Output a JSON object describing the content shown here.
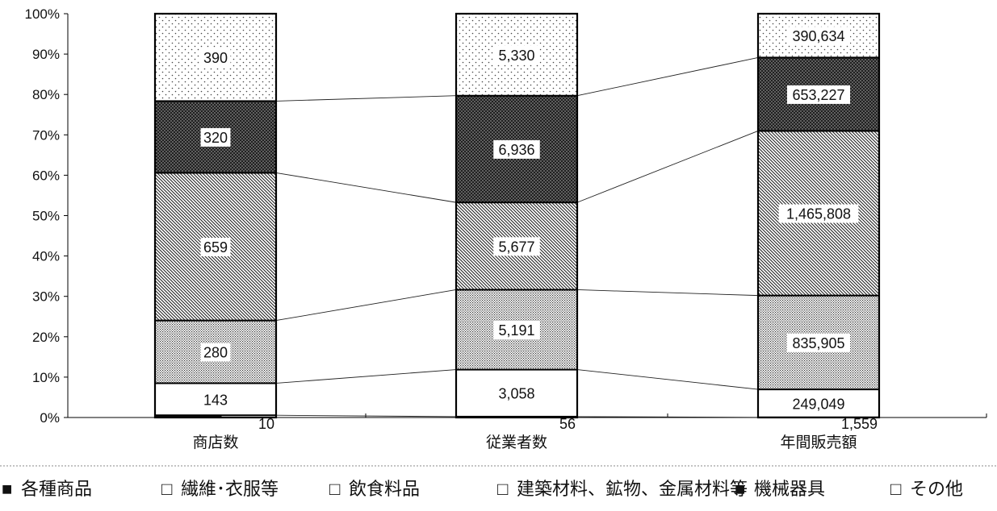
{
  "chart_data": {
    "type": "bar",
    "stacked": true,
    "normalized": true,
    "categories": [
      "商店数",
      "従業者数",
      "年間販売額"
    ],
    "series": [
      {
        "name": "各種商品",
        "values": [
          10,
          56,
          1559
        ],
        "pattern": "solid-black"
      },
      {
        "name": "繊維･衣服等",
        "values": [
          143,
          3058,
          249049
        ],
        "pattern": "white"
      },
      {
        "name": "飲食料品",
        "values": [
          280,
          5191,
          835905
        ],
        "pattern": "fine-dots"
      },
      {
        "name": "建築材料、鉱物、金属材料等",
        "values": [
          659,
          5677,
          1465808
        ],
        "pattern": "diagonal"
      },
      {
        "name": "機械器具",
        "values": [
          320,
          6936,
          653227
        ],
        "pattern": "crosshatch"
      },
      {
        "name": "その他",
        "values": [
          390,
          5330,
          390634
        ],
        "pattern": "sparse-dots"
      }
    ],
    "y_axis": {
      "ylim": [
        0,
        100
      ],
      "ticks": [
        "0%",
        "10%",
        "20%",
        "30%",
        "40%",
        "50%",
        "60%",
        "70%",
        "80%",
        "90%",
        "100%"
      ]
    },
    "legend": {
      "position": "bottom",
      "symbols": [
        "■",
        "□",
        "□",
        "□",
        "■",
        "□"
      ]
    },
    "grid": false,
    "connector_lines": true,
    "colors": {
      "axis": "#000000",
      "legend_divider": "#888888"
    }
  }
}
